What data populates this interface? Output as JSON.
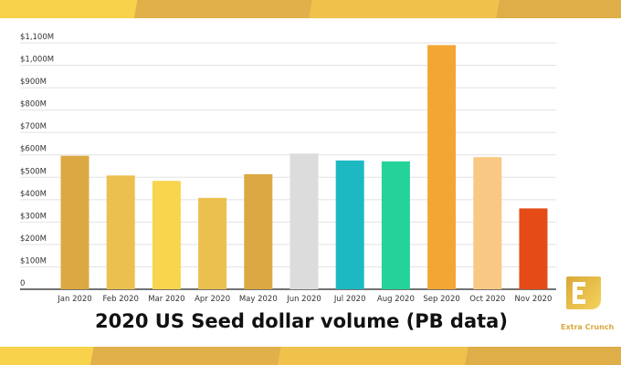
{
  "chart_data": {
    "type": "bar",
    "title": "2020 US Seed dollar volume (PB data)",
    "xlabel": "",
    "ylabel": "",
    "categories": [
      "Jan 2020",
      "Feb 2020",
      "Mar 2020",
      "Apr 2020",
      "May 2020",
      "Jun 2020",
      "Jul 2020",
      "Aug 2020",
      "Sep 2020",
      "Oct 2020",
      "Nov 2020"
    ],
    "values": [
      596,
      508,
      484,
      408,
      514,
      606,
      575,
      571,
      1090,
      590,
      361
    ],
    "units": "$M",
    "colors": [
      "#dca843",
      "#ecc04e",
      "#f9d54e",
      "#ecc04e",
      "#dca843",
      "#dcdcdc",
      "#1db9c3",
      "#23d39a",
      "#f3a634",
      "#f9c882",
      "#e54b17"
    ],
    "ylim": [
      0,
      1100
    ],
    "yticks": [
      0,
      100,
      200,
      300,
      400,
      500,
      600,
      700,
      800,
      900,
      1000,
      1100
    ],
    "ytick_labels": [
      "0",
      "$100M",
      "$200M",
      "$300M",
      "$400M",
      "$500M",
      "$600M",
      "$700M",
      "$800M",
      "$900M",
      "$1,000M",
      "$1,100M"
    ],
    "grid": true,
    "legend": "none"
  },
  "branding": {
    "logo_text": "Extra Crunch"
  }
}
